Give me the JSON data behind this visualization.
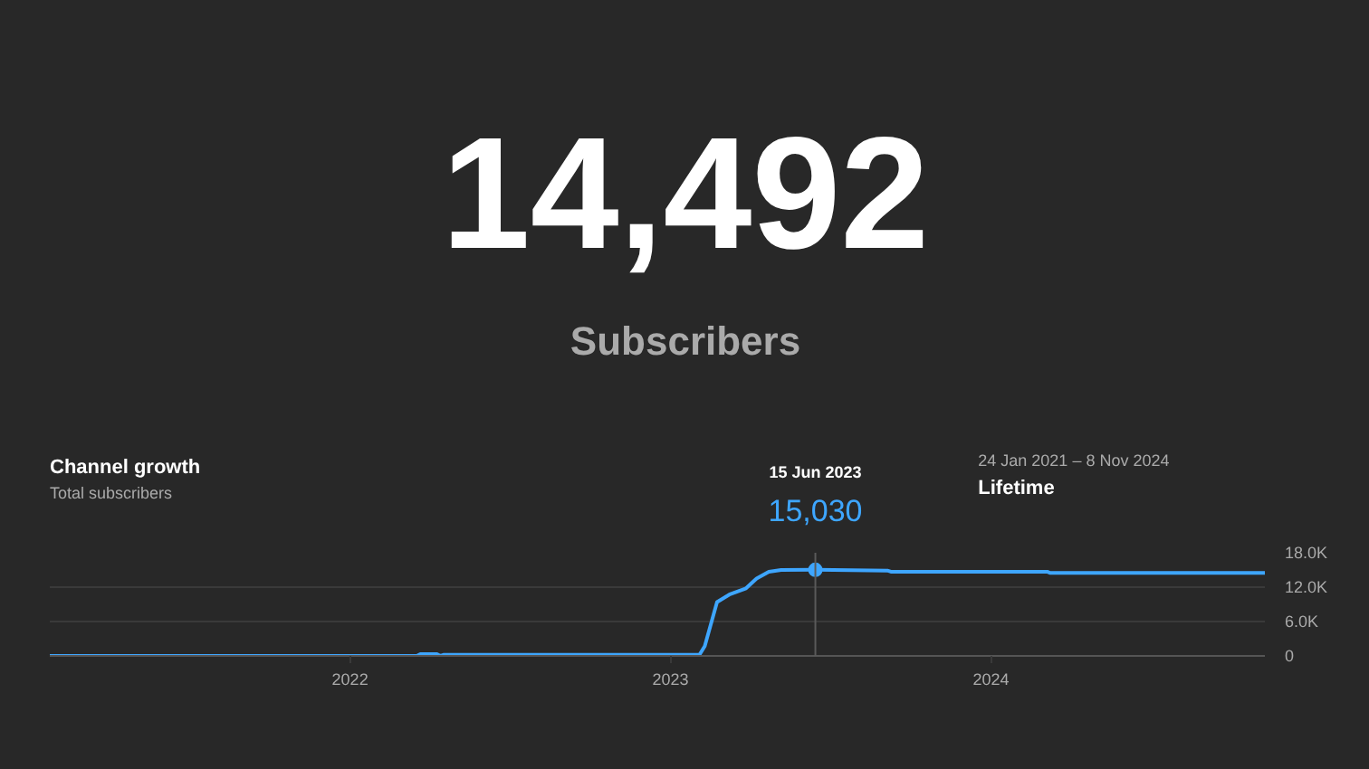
{
  "chart_data": [
    {
      "type": "other",
      "title": "14,492",
      "subtitle": "Subscribers"
    },
    {
      "type": "line",
      "title": "Channel growth",
      "subtitle": "Total subscribers",
      "x": [
        "2021-01-24",
        "2021-12-31",
        "2022-01-02",
        "2022-03-18",
        "2022-03-22",
        "2022-04-10",
        "2022-04-14",
        "2022-04-18",
        "2023-01-20",
        "2023-02-03",
        "2023-02-09",
        "2023-02-23",
        "2023-03-09",
        "2023-03-28",
        "2023-04-09",
        "2023-04-23",
        "2023-05-07",
        "2023-06-15",
        "2023-09-05",
        "2023-09-09",
        "2024-03-05",
        "2024-03-08",
        "2024-11-08"
      ],
      "series": [
        {
          "color": "#3ea6ff",
          "values": [
            0,
            0,
            0,
            0,
            300,
            300,
            0,
            200,
            200,
            200,
            1700,
            9400,
            10700,
            11800,
            13500,
            14700,
            15000,
            15030,
            14900,
            14700,
            14700,
            14500,
            14500
          ]
        }
      ],
      "xlim": [
        "2021-01-24",
        "2024-11-08"
      ],
      "xticks": [
        {
          "value": "2022-01-01",
          "label": "2022"
        },
        {
          "value": "2023-01-01",
          "label": "2023"
        },
        {
          "value": "2024-01-01",
          "label": "2024"
        }
      ],
      "ylim": [
        0,
        18000
      ],
      "yticks": [
        0,
        {
          "value": 6000,
          "label": "6.0K"
        },
        {
          "value": 12000,
          "label": "12.0K"
        },
        {
          "value": 18000,
          "label": "18.0K"
        }
      ],
      "grid": "y",
      "marker": "none",
      "line_style": "solid",
      "ref_lines": [
        {
          "axis": "x",
          "value": "2023-06-15",
          "color": "#5a5a5a"
        }
      ],
      "annotations": [
        "15 Jun 2023",
        {
          "text": "15,030",
          "x": "2023-06-15",
          "y": 15030
        },
        "24 Jan 2021 – 8 Nov 2024",
        "Lifetime"
      ]
    }
  ]
}
